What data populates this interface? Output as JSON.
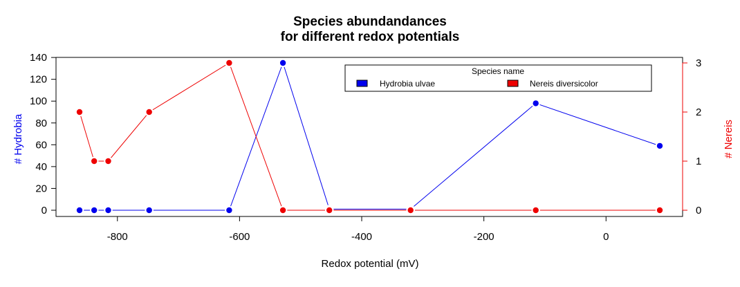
{
  "chart_data": {
    "type": "line",
    "title": [
      "Species abundandances",
      "for different redox potentials"
    ],
    "xlabel": "Redox potential (mV)",
    "ylabel_left": "# Hydrobia",
    "ylabel_right": "# Nereis",
    "xlim": [
      -862,
      88
    ],
    "xticks": [
      -800,
      -600,
      -400,
      -200,
      0
    ],
    "ylim_left": [
      0,
      135
    ],
    "yticks_left": [
      0,
      20,
      40,
      60,
      80,
      100,
      120,
      140
    ],
    "ylim_right": [
      0,
      3
    ],
    "yticks_right": [
      0,
      1,
      2,
      3
    ],
    "legend": {
      "title": "Species name",
      "position": "top-right",
      "entries": [
        "Hydrobia ulvae",
        "Nereis diversicolor"
      ]
    },
    "colors": {
      "left": "#0000ee",
      "right": "#ee0000",
      "axis": "#000000"
    },
    "x": [
      -862,
      -838,
      -815,
      -748,
      -617,
      -529,
      -453,
      -320,
      -115,
      88
    ],
    "series": [
      {
        "name": "Hydrobia ulvae",
        "axis": "left",
        "color": "#0000ee",
        "values": [
          0,
          0,
          0,
          0,
          0,
          135,
          1,
          1,
          98,
          59
        ]
      },
      {
        "name": "Nereis diversicolor",
        "axis": "right",
        "color": "#ee0000",
        "values": [
          2,
          1,
          1,
          2,
          3,
          0,
          0,
          0,
          0,
          0
        ]
      }
    ]
  }
}
